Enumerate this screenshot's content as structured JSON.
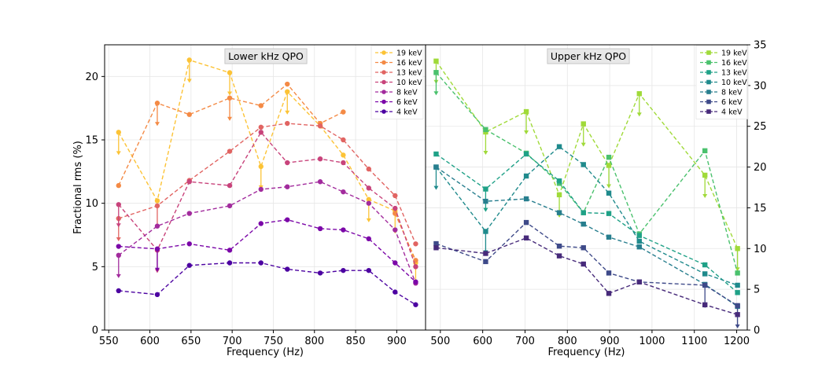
{
  "chart_data": [
    {
      "type": "line",
      "panel": "left",
      "title": "Lower kHz QPO",
      "xlabel": "Frequency (Hz)",
      "ylabel": "Fractional rms (%)",
      "xlim": [
        545,
        935
      ],
      "ylim": [
        0,
        22.5
      ],
      "xticks": [
        550,
        600,
        650,
        700,
        750,
        800,
        850,
        900
      ],
      "yticks": [
        0,
        5,
        10,
        15,
        20
      ],
      "grid": true,
      "legend_position": "top-right",
      "x": [
        562,
        609,
        648,
        697,
        735,
        767,
        807,
        835,
        866,
        898,
        923
      ],
      "series": [
        {
          "name": "19 keV",
          "color": "#fcc336",
          "values": [
            15.6,
            10.2,
            21.3,
            20.3,
            12.9,
            18.8,
            16.1,
            13.8,
            10.3,
            9.4,
            5.3
          ],
          "upper_limits": [
            true,
            false,
            true,
            true,
            true,
            true,
            false,
            false,
            true,
            true,
            true
          ]
        },
        {
          "name": "16 keV",
          "color": "#f48a45",
          "values": [
            11.4,
            17.9,
            17.0,
            18.3,
            17.7,
            19.4,
            16.3,
            17.2,
            null,
            9.2,
            5.5
          ],
          "upper_limits": [
            false,
            true,
            false,
            true,
            false,
            false,
            false,
            false,
            false,
            false,
            false
          ]
        },
        {
          "name": "13 keV",
          "color": "#e16462",
          "values": [
            8.8,
            9.8,
            11.8,
            14.1,
            16.0,
            16.3,
            16.1,
            15.0,
            12.7,
            10.6,
            6.8
          ],
          "upper_limits": [
            true,
            true,
            false,
            false,
            false,
            false,
            false,
            false,
            false,
            false,
            false
          ]
        },
        {
          "name": "10 keV",
          "color": "#c8437b",
          "values": [
            9.9,
            6.3,
            11.7,
            11.4,
            15.6,
            13.2,
            13.5,
            13.2,
            11.2,
            9.6,
            5.0
          ],
          "upper_limits": [
            true,
            true,
            false,
            false,
            false,
            false,
            false,
            false,
            false,
            false,
            false
          ]
        },
        {
          "name": "8 keV",
          "color": "#a22b9d",
          "values": [
            5.9,
            8.2,
            9.2,
            9.8,
            11.1,
            11.3,
            11.7,
            10.9,
            10.0,
            7.9,
            3.7
          ],
          "upper_limits": [
            true,
            false,
            false,
            false,
            false,
            false,
            false,
            false,
            false,
            false,
            false
          ]
        },
        {
          "name": "6 keV",
          "color": "#7b07a8",
          "values": [
            6.6,
            6.4,
            6.8,
            6.3,
            8.4,
            8.7,
            8.0,
            7.9,
            7.2,
            5.3,
            3.8
          ],
          "upper_limits": [
            false,
            true,
            false,
            false,
            false,
            false,
            false,
            false,
            false,
            false,
            false
          ]
        },
        {
          "name": "4 keV",
          "color": "#4c02a1",
          "values": [
            3.1,
            2.8,
            5.1,
            5.3,
            5.3,
            4.8,
            4.5,
            4.7,
            4.7,
            3.0,
            2.0
          ],
          "upper_limits": [
            false,
            false,
            false,
            false,
            false,
            false,
            false,
            false,
            false,
            false,
            false
          ]
        }
      ]
    },
    {
      "type": "line",
      "panel": "right",
      "title": "Upper kHz QPO",
      "xlabel": "Frequency (Hz)",
      "ylabel": "",
      "xlim": [
        465,
        1225
      ],
      "ylim": [
        0,
        35
      ],
      "xticks": [
        500,
        600,
        700,
        800,
        900,
        1000,
        1100,
        1200
      ],
      "yticks": [
        0,
        5,
        10,
        15,
        20,
        25,
        30,
        35
      ],
      "grid": true,
      "legend_position": "top-right",
      "x": [
        490,
        607,
        703,
        781,
        838,
        898,
        970,
        1125,
        1202
      ],
      "series": [
        {
          "name": "19 keV",
          "color": "#a0da39",
          "values": [
            33.0,
            24.3,
            26.8,
            16.6,
            25.3,
            20.2,
            29.0,
            19.0,
            10.0
          ],
          "upper_limits": [
            true,
            true,
            true,
            true,
            true,
            true,
            true,
            true,
            true
          ]
        },
        {
          "name": "16 keV",
          "color": "#4ac16d",
          "values": [
            31.6,
            24.6,
            21.7,
            18.0,
            14.4,
            21.2,
            11.8,
            22.0,
            7.0
          ],
          "upper_limits": [
            true,
            false,
            false,
            false,
            false,
            false,
            false,
            false,
            false
          ]
        },
        {
          "name": "13 keV",
          "color": "#1fa187",
          "values": [
            21.6,
            17.3,
            21.6,
            18.3,
            14.4,
            14.3,
            11.6,
            8.0,
            4.6
          ],
          "upper_limits": [
            false,
            true,
            false,
            false,
            false,
            false,
            false,
            false,
            false
          ]
        },
        {
          "name": "10 keV",
          "color": "#1f8a8c",
          "values": [
            20.0,
            12.1,
            18.9,
            22.5,
            20.3,
            16.8,
            10.9,
            6.9,
            5.5
          ],
          "upper_limits": [
            true,
            true,
            false,
            false,
            false,
            false,
            false,
            false,
            false
          ]
        },
        {
          "name": "8 keV",
          "color": "#277e8e",
          "values": [
            20.0,
            15.8,
            16.1,
            14.4,
            13.0,
            11.4,
            10.2,
            5.6,
            2.9
          ],
          "upper_limits": [
            false,
            false,
            false,
            false,
            false,
            false,
            false,
            false,
            false
          ]
        },
        {
          "name": "6 keV",
          "color": "#3e4a89",
          "values": [
            10.6,
            8.4,
            13.2,
            10.3,
            10.1,
            7.0,
            5.9,
            5.5,
            3.0
          ],
          "upper_limits": [
            false,
            false,
            false,
            false,
            false,
            false,
            false,
            true,
            true
          ]
        },
        {
          "name": "4 keV",
          "color": "#472a7a",
          "values": [
            10.1,
            9.4,
            11.3,
            9.1,
            8.1,
            4.5,
            5.9,
            3.1,
            1.9
          ],
          "upper_limits": [
            false,
            false,
            false,
            false,
            false,
            false,
            false,
            false,
            false
          ]
        }
      ]
    }
  ]
}
